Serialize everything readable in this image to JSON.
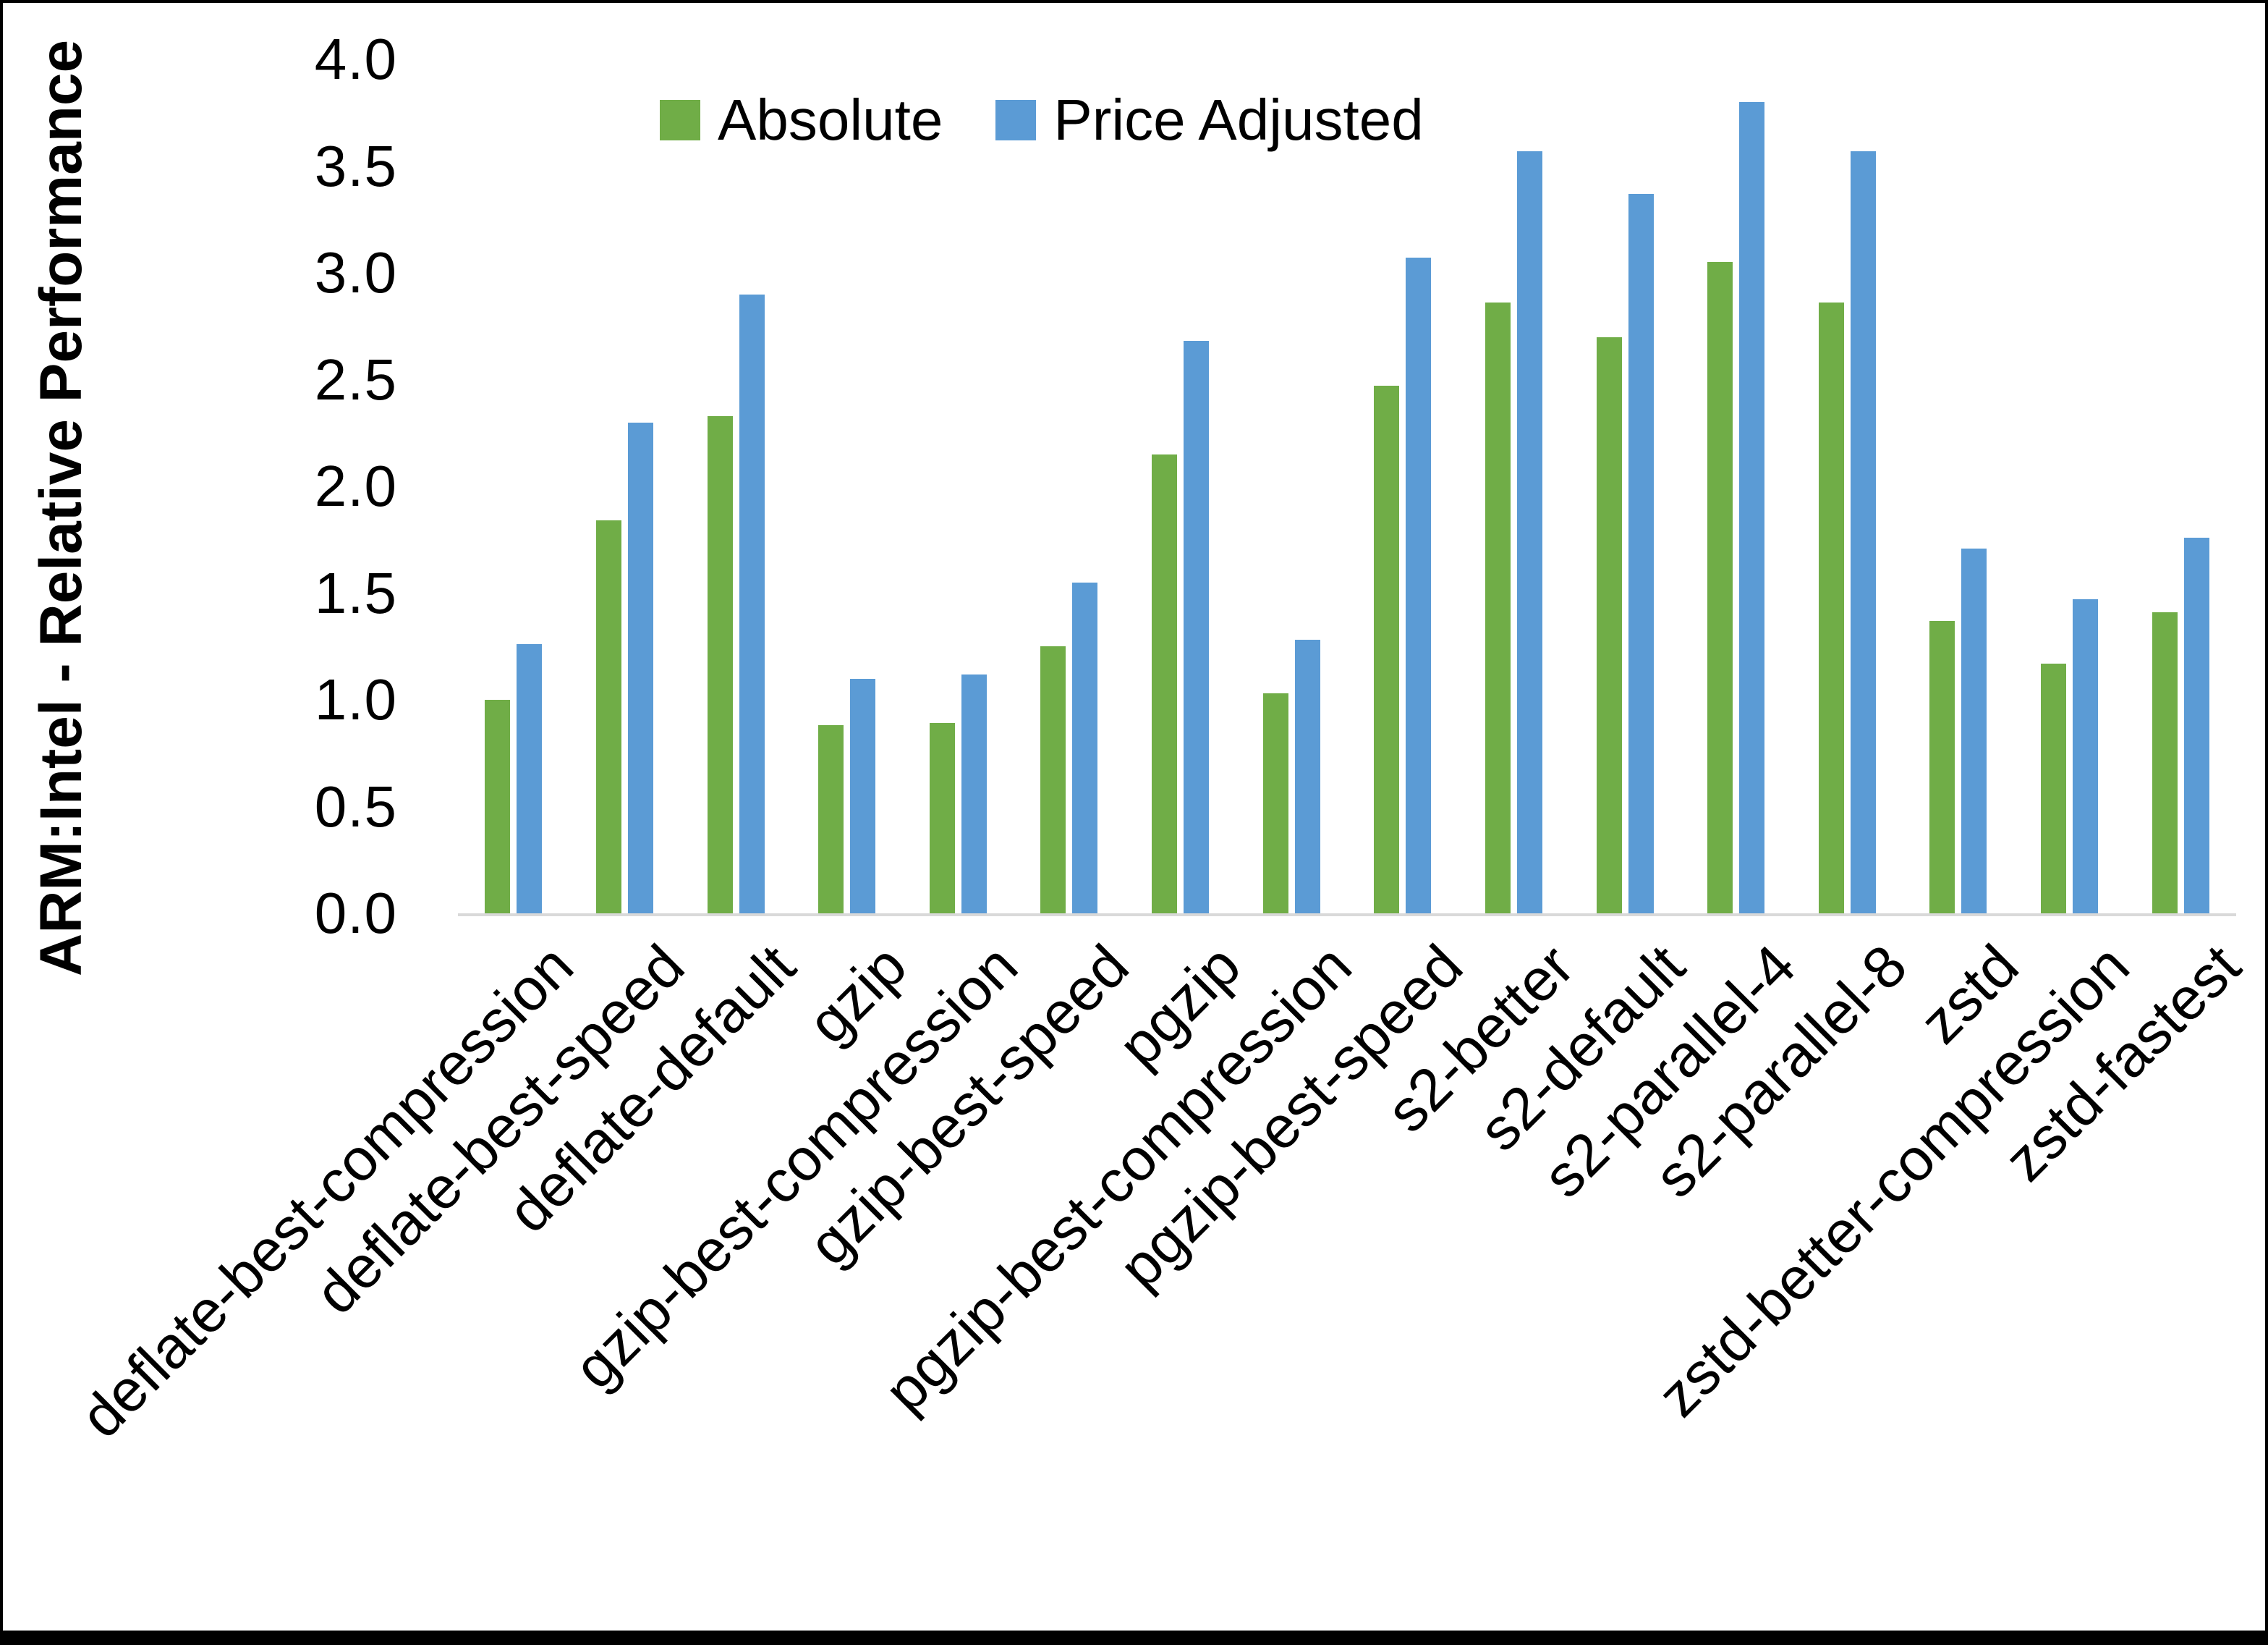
{
  "chart_data": {
    "type": "bar",
    "title": "",
    "xlabel": "",
    "ylabel": "ARM:Intel - Relative Performance",
    "ylim": [
      0.0,
      4.0
    ],
    "ytick_step": 0.5,
    "grid": false,
    "legend_position": "top-center",
    "categories": [
      "deflate-best-compression",
      "deflate-best-speed",
      "deflate-default",
      "gzip",
      "gzip-best-compression",
      "gzip-best-speed",
      "pgzip",
      "pgzip-best-compression",
      "pgzip-best-speed",
      "s2-better",
      "s2-default",
      "s2-parallel-4",
      "s2-parallel-8",
      "zstd",
      "zstd-better-compression",
      "zstd-fastest"
    ],
    "series": [
      {
        "name": "Absolute",
        "color": "#70AD47",
        "values": [
          1.0,
          1.84,
          2.33,
          0.88,
          0.89,
          1.25,
          2.15,
          1.03,
          2.47,
          2.86,
          2.7,
          3.05,
          2.86,
          1.37,
          1.17,
          1.41
        ]
      },
      {
        "name": "Price Adjusted",
        "color": "#5B9BD5",
        "values": [
          1.26,
          2.3,
          2.9,
          1.1,
          1.12,
          1.55,
          2.68,
          1.28,
          3.07,
          3.57,
          3.37,
          3.8,
          3.57,
          1.71,
          1.47,
          1.76
        ]
      }
    ]
  },
  "axis": {
    "y_tick_labels": [
      "0.0",
      "0.5",
      "1.0",
      "1.5",
      "2.0",
      "2.5",
      "3.0",
      "3.5",
      "4.0"
    ],
    "y_axis_title": "ARM:Intel - Relative Performance",
    "axis_line_color": "#d9d9d9"
  },
  "legend": {
    "items": [
      {
        "label": "Absolute",
        "color": "#70AD47"
      },
      {
        "label": "Price Adjusted",
        "color": "#5B9BD5"
      }
    ]
  },
  "frame": {
    "border_color": "#000000"
  }
}
